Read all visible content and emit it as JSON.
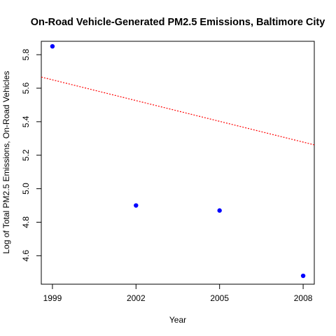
{
  "chart_data": {
    "type": "scatter",
    "title": "On-Road Vehicle-Generated PM2.5 Emissions, Baltimore City",
    "xlabel": "Year",
    "ylabel": "Log of Total PM2.5 Emissions, On-Road Vehicles",
    "xlim": [
      1998.6,
      2008.4
    ],
    "ylim": [
      4.43,
      5.88
    ],
    "x_ticks": [
      1999,
      2002,
      2005,
      2008
    ],
    "y_ticks": [
      4.6,
      4.8,
      5.0,
      5.2,
      5.4,
      5.6,
      5.8
    ],
    "y_tick_labels": [
      "4.6",
      "4.8",
      "5.0",
      "5.2",
      "5.4",
      "5.6",
      "5.8"
    ],
    "grid": false,
    "points": {
      "x": [
        1999,
        2002,
        2005,
        2008
      ],
      "y": [
        5.85,
        4.9,
        4.87,
        4.48
      ],
      "color": "#0000ff"
    },
    "trend_line": {
      "style": "dotted",
      "color": "#ff0000",
      "intercept_at_1999": 5.65,
      "slope_per_year": -0.0413
    }
  }
}
